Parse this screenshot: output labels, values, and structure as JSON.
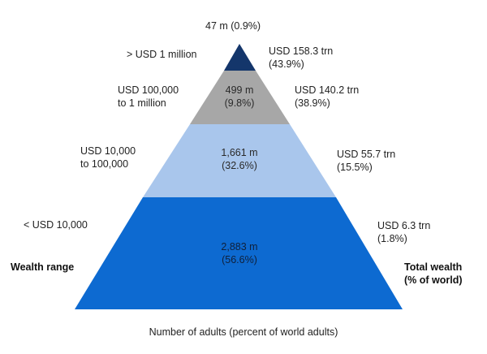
{
  "diagram": {
    "tiers": [
      {
        "range": [
          "> USD 1 million"
        ],
        "adults": "47 m (0.9%)",
        "wealth": [
          "USD 158.3 trn",
          "(43.9%)"
        ],
        "color": "#14366b"
      },
      {
        "range": [
          "USD 100,000",
          "to 1 million"
        ],
        "adults": [
          "499 m",
          "(9.8%)"
        ],
        "wealth": [
          "USD 140.2 trn",
          "(38.9%)"
        ],
        "color": "#a7a7a7"
      },
      {
        "range": [
          "USD 10,000",
          "to 100,000"
        ],
        "adults": [
          "1,661 m",
          "(32.6%)"
        ],
        "wealth": [
          "USD 55.7 trn",
          "(15.5%)"
        ],
        "color": "#a9c6ec"
      },
      {
        "range": [
          "< USD 10,000"
        ],
        "adults": [
          "2,883 m",
          "(56.6%)"
        ],
        "wealth": [
          "USD 6.3 trn",
          "(1.8%)"
        ],
        "color": "#0d6ad1"
      }
    ],
    "left_heading": "Wealth range",
    "right_heading": [
      "Total wealth",
      "(% of world)"
    ],
    "bottom_caption": "Number of adults (percent of world adults)"
  }
}
